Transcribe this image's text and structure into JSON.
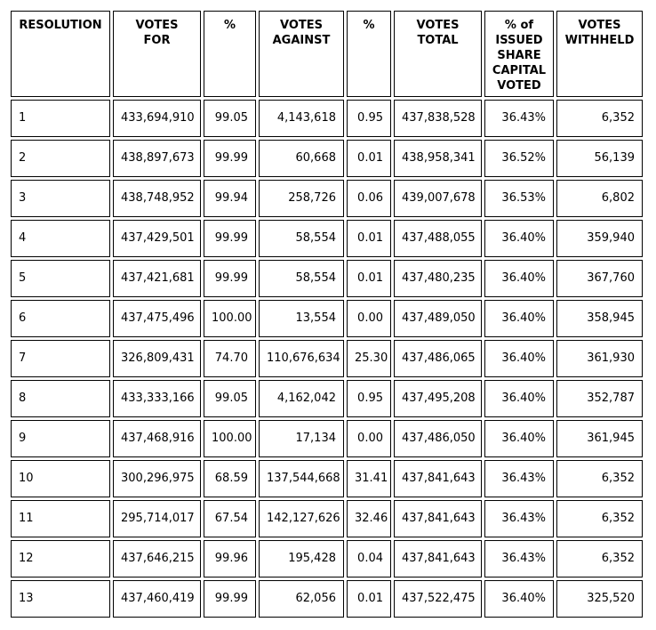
{
  "colors": {
    "background": "#ffffff",
    "border": "#000000",
    "text": "#000000"
  },
  "table": {
    "headers": [
      "RESOLUTION",
      "VOTES\nFOR",
      "%",
      "VOTES\nAGAINST",
      "%",
      "VOTES\nTOTAL",
      "% of\nISSUED\nSHARE\nCAPITAL\nVOTED",
      "VOTES\nWITHHELD"
    ],
    "rows": [
      {
        "resolution": "1",
        "votes_for": "433,694,910",
        "for_pct": "99.05",
        "votes_against": "4,143,618",
        "against_pct": "0.95",
        "votes_total": "437,838,528",
        "issued_share_capital_pct": "36.43%",
        "votes_withheld": "6,352"
      },
      {
        "resolution": "2",
        "votes_for": "438,897,673",
        "for_pct": "99.99",
        "votes_against": "60,668",
        "against_pct": "0.01",
        "votes_total": "438,958,341",
        "issued_share_capital_pct": "36.52%",
        "votes_withheld": "56,139"
      },
      {
        "resolution": "3",
        "votes_for": "438,748,952",
        "for_pct": "99.94",
        "votes_against": "258,726",
        "against_pct": "0.06",
        "votes_total": "439,007,678",
        "issued_share_capital_pct": "36.53%",
        "votes_withheld": "6,802"
      },
      {
        "resolution": "4",
        "votes_for": "437,429,501",
        "for_pct": "99.99",
        "votes_against": "58,554",
        "against_pct": "0.01",
        "votes_total": "437,488,055",
        "issued_share_capital_pct": "36.40%",
        "votes_withheld": "359,940"
      },
      {
        "resolution": "5",
        "votes_for": "437,421,681",
        "for_pct": "99.99",
        "votes_against": "58,554",
        "against_pct": "0.01",
        "votes_total": "437,480,235",
        "issued_share_capital_pct": "36.40%",
        "votes_withheld": "367,760"
      },
      {
        "resolution": "6",
        "votes_for": "437,475,496",
        "for_pct": "100.00",
        "votes_against": "13,554",
        "against_pct": "0.00",
        "votes_total": "437,489,050",
        "issued_share_capital_pct": "36.40%",
        "votes_withheld": "358,945"
      },
      {
        "resolution": "7",
        "votes_for": "326,809,431",
        "for_pct": "74.70",
        "votes_against": "110,676,634",
        "against_pct": "25.30",
        "votes_total": "437,486,065",
        "issued_share_capital_pct": "36.40%",
        "votes_withheld": "361,930"
      },
      {
        "resolution": "8",
        "votes_for": "433,333,166",
        "for_pct": "99.05",
        "votes_against": "4,162,042",
        "against_pct": "0.95",
        "votes_total": "437,495,208",
        "issued_share_capital_pct": "36.40%",
        "votes_withheld": "352,787"
      },
      {
        "resolution": "9",
        "votes_for": "437,468,916",
        "for_pct": "100.00",
        "votes_against": "17,134",
        "against_pct": "0.00",
        "votes_total": "437,486,050",
        "issued_share_capital_pct": "36.40%",
        "votes_withheld": "361,945"
      },
      {
        "resolution": "10",
        "votes_for": "300,296,975",
        "for_pct": "68.59",
        "votes_against": "137,544,668",
        "against_pct": "31.41",
        "votes_total": "437,841,643",
        "issued_share_capital_pct": "36.43%",
        "votes_withheld": "6,352"
      },
      {
        "resolution": "11",
        "votes_for": "295,714,017",
        "for_pct": "67.54",
        "votes_against": "142,127,626",
        "against_pct": "32.46",
        "votes_total": "437,841,643",
        "issued_share_capital_pct": "36.43%",
        "votes_withheld": "6,352"
      },
      {
        "resolution": "12",
        "votes_for": "437,646,215",
        "for_pct": "99.96",
        "votes_against": "195,428",
        "against_pct": "0.04",
        "votes_total": "437,841,643",
        "issued_share_capital_pct": "36.43%",
        "votes_withheld": "6,352"
      },
      {
        "resolution": "13",
        "votes_for": "437,460,419",
        "for_pct": "99.99",
        "votes_against": "62,056",
        "against_pct": "0.01",
        "votes_total": "437,522,475",
        "issued_share_capital_pct": "36.40%",
        "votes_withheld": "325,520"
      }
    ]
  }
}
